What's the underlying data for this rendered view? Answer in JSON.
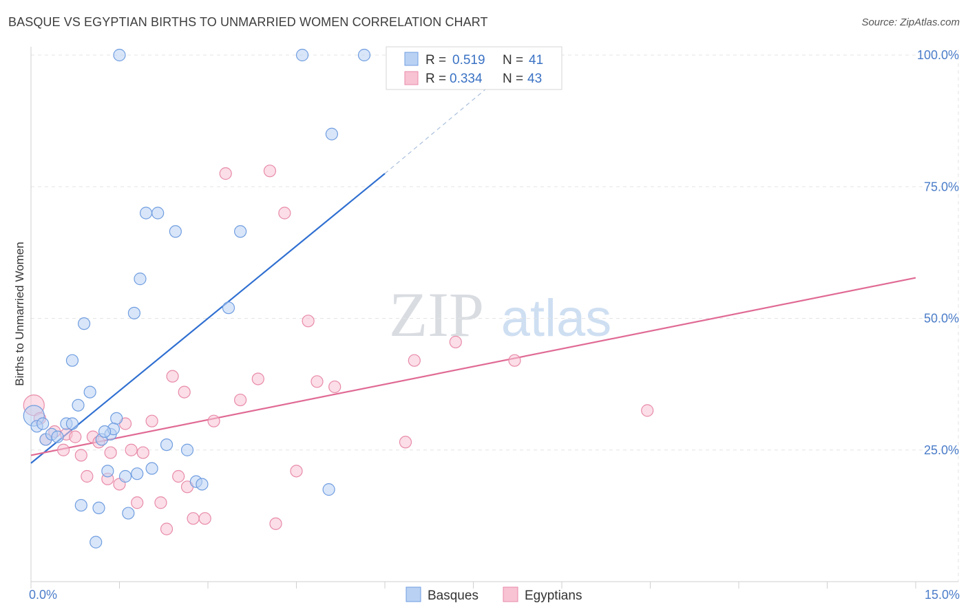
{
  "header": {
    "title": "BASQUE VS EGYPTIAN BIRTHS TO UNMARRIED WOMEN CORRELATION CHART",
    "source": "Source: ZipAtlas.com"
  },
  "watermark": {
    "zip": "ZIP",
    "atlas": "atlas"
  },
  "colors": {
    "basques_fill": "#b9d2f4",
    "basques_stroke": "#6f9de0",
    "basques_line": "#2f6fd1",
    "egyptians_fill": "#f8c3d3",
    "egyptians_stroke": "#e88aa8",
    "egyptians_line": "#e06a94"
  },
  "legend": {
    "rows": [
      {
        "r_label": "R =",
        "r_value": "0.519",
        "n_label": "N =",
        "n_value": "41"
      },
      {
        "r_label": "R =",
        "r_value": "0.334",
        "n_label": "N =",
        "n_value": "43"
      }
    ]
  },
  "bottom_legend": [
    "Basques",
    "Egyptians"
  ],
  "chart_data": {
    "type": "scatter",
    "title": "BASQUE VS EGYPTIAN BIRTHS TO UNMARRIED WOMEN CORRELATION CHART",
    "xlabel": "",
    "ylabel": "Births to Unmarried Women",
    "xlim": [
      0,
      15
    ],
    "ylim": [
      0,
      102
    ],
    "x_tick_labels": [
      "0.0%",
      "15.0%"
    ],
    "y_ticks": [
      25,
      50,
      75,
      100
    ],
    "y_tick_labels": [
      "25.0%",
      "50.0%",
      "75.0%",
      "100.0%"
    ],
    "grid": true,
    "legend_position": "top-center",
    "series": [
      {
        "name": "Basques",
        "r": 0.519,
        "n": 41,
        "trend": {
          "x": [
            0,
            6
          ],
          "y": [
            22.5,
            77.5
          ],
          "dashed_to": [
            8.4,
            100
          ]
        },
        "points": [
          [
            0.05,
            31.5
          ],
          [
            0.1,
            29.5
          ],
          [
            0.2,
            30
          ],
          [
            0.25,
            27
          ],
          [
            0.35,
            28
          ],
          [
            0.45,
            27.5
          ],
          [
            0.6,
            30
          ],
          [
            0.7,
            30
          ],
          [
            0.7,
            42
          ],
          [
            0.8,
            33.5
          ],
          [
            0.9,
            49
          ],
          [
            1.0,
            36
          ],
          [
            0.85,
            14.5
          ],
          [
            1.15,
            14
          ],
          [
            1.1,
            7.5
          ],
          [
            1.2,
            27
          ],
          [
            1.3,
            21
          ],
          [
            1.35,
            28
          ],
          [
            1.45,
            31
          ],
          [
            1.4,
            29
          ],
          [
            1.6,
            20
          ],
          [
            1.65,
            13
          ],
          [
            1.75,
            51
          ],
          [
            1.85,
            57.5
          ],
          [
            1.8,
            20.5
          ],
          [
            1.95,
            70
          ],
          [
            2.15,
            70
          ],
          [
            2.05,
            21.5
          ],
          [
            2.3,
            26
          ],
          [
            2.45,
            66.5
          ],
          [
            2.65,
            25
          ],
          [
            2.8,
            19
          ],
          [
            2.9,
            18.5
          ],
          [
            3.35,
            52
          ],
          [
            3.55,
            66.5
          ],
          [
            5.05,
            17.5
          ],
          [
            5.1,
            85
          ],
          [
            1.5,
            100
          ],
          [
            4.6,
            100
          ],
          [
            5.65,
            100
          ],
          [
            1.25,
            28.5
          ]
        ]
      },
      {
        "name": "Egyptians",
        "r": 0.334,
        "n": 43,
        "trend": {
          "x": [
            0,
            15
          ],
          "y": [
            24,
            57.7
          ]
        },
        "points": [
          [
            0.05,
            33.5
          ],
          [
            0.15,
            31
          ],
          [
            0.25,
            27
          ],
          [
            0.4,
            28.5
          ],
          [
            0.55,
            25
          ],
          [
            0.6,
            28
          ],
          [
            0.75,
            27.5
          ],
          [
            0.85,
            24
          ],
          [
            0.95,
            20
          ],
          [
            1.05,
            27.5
          ],
          [
            1.15,
            26.5
          ],
          [
            1.3,
            19.5
          ],
          [
            1.35,
            24.5
          ],
          [
            1.5,
            18.5
          ],
          [
            1.6,
            30
          ],
          [
            1.7,
            25
          ],
          [
            1.8,
            15
          ],
          [
            1.9,
            24.5
          ],
          [
            2.05,
            30.5
          ],
          [
            2.2,
            15
          ],
          [
            2.3,
            10
          ],
          [
            2.4,
            39
          ],
          [
            2.5,
            20
          ],
          [
            2.6,
            36
          ],
          [
            2.65,
            18
          ],
          [
            2.75,
            12
          ],
          [
            2.95,
            12
          ],
          [
            3.1,
            30.5
          ],
          [
            3.3,
            77.5
          ],
          [
            3.55,
            34.5
          ],
          [
            3.85,
            38.5
          ],
          [
            4.05,
            78
          ],
          [
            4.15,
            11
          ],
          [
            4.3,
            70
          ],
          [
            4.5,
            21
          ],
          [
            4.7,
            49.5
          ],
          [
            4.85,
            38
          ],
          [
            5.15,
            37
          ],
          [
            6.35,
            26.5
          ],
          [
            6.5,
            42
          ],
          [
            7.2,
            45.5
          ],
          [
            8.2,
            42
          ],
          [
            10.45,
            32.5
          ]
        ]
      }
    ]
  }
}
